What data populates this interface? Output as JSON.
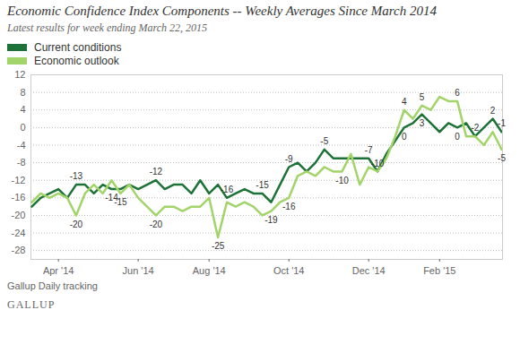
{
  "chart_data": {
    "type": "line",
    "title": "Economic Confidence Index Components -- Weekly Averages Since March 2014",
    "subtitle": "Latest results for week ending March 22, 2015",
    "caption": "Gallup Daily tracking",
    "logo": "GALLUP",
    "legend": "top-left",
    "grid": true,
    "categories": [
      null,
      null,
      null,
      "Apr '14",
      null,
      null,
      null,
      null,
      null,
      null,
      null,
      null,
      "Jun '14",
      null,
      null,
      null,
      null,
      null,
      null,
      null,
      "Aug '14",
      null,
      null,
      null,
      null,
      null,
      null,
      null,
      null,
      "Oct '14",
      null,
      null,
      null,
      null,
      null,
      null,
      null,
      null,
      "Dec '14",
      null,
      null,
      null,
      null,
      null,
      null,
      null,
      "Feb '15",
      null,
      null,
      null,
      null,
      null,
      null,
      null
    ],
    "ylim": [
      -30,
      12
    ],
    "yticks": [
      -28,
      -24,
      -20,
      -16,
      -12,
      -8,
      -4,
      0,
      4,
      8,
      12
    ],
    "series": [
      {
        "name": "Current conditions",
        "color": "#1d7337",
        "values": [
          -18,
          -16,
          -15,
          -14,
          -16,
          -13,
          -13,
          -15,
          -13,
          -14,
          -14,
          -13,
          -14,
          -13,
          -12,
          -14,
          -13,
          -13,
          -15,
          -12,
          -15,
          -13,
          -16,
          -15,
          -14,
          -15,
          -15,
          -17,
          -13,
          -9,
          -8,
          -10,
          -8,
          -5,
          -7,
          -7,
          -7,
          -7,
          -7,
          -10,
          -6,
          -3,
          0,
          1,
          3,
          1,
          -1,
          1,
          0,
          1,
          -2,
          0,
          2,
          -1
        ],
        "value_labels": [
          null,
          null,
          null,
          null,
          null,
          "-13",
          null,
          null,
          null,
          "-14",
          null,
          null,
          null,
          null,
          "-12",
          null,
          null,
          null,
          null,
          null,
          null,
          null,
          "-16",
          null,
          null,
          null,
          "-15",
          null,
          null,
          "-9",
          null,
          null,
          null,
          "-5",
          null,
          null,
          null,
          null,
          "-7",
          "-10",
          null,
          null,
          "0",
          null,
          "3",
          null,
          null,
          null,
          "0",
          null,
          null,
          null,
          "2",
          "-1"
        ]
      },
      {
        "name": "Economic outlook",
        "color": "#a3d46a",
        "values": [
          -17,
          -15,
          -16,
          -15,
          -16,
          -20,
          -15,
          -13,
          -15,
          -12,
          -15,
          -13,
          -16,
          -18,
          -20,
          -18,
          -18,
          -19,
          -18,
          -18,
          -16,
          -25,
          -17,
          -18,
          -17,
          -18,
          -20,
          -19,
          -17,
          -16,
          -11,
          -10,
          -11,
          -9,
          -10,
          -10,
          -6,
          -13,
          -9,
          -10,
          -7,
          -2,
          4,
          2,
          5,
          4,
          7,
          6,
          6,
          -2,
          -2,
          -4,
          -1,
          -5
        ],
        "value_labels": [
          null,
          null,
          null,
          null,
          null,
          "-20",
          null,
          null,
          null,
          null,
          "-15",
          null,
          null,
          null,
          "-20",
          null,
          null,
          null,
          null,
          null,
          null,
          "-25",
          null,
          null,
          null,
          null,
          null,
          "-19",
          null,
          "-16",
          null,
          null,
          null,
          null,
          null,
          "-10",
          null,
          null,
          null,
          null,
          null,
          null,
          "4",
          null,
          "5",
          null,
          null,
          null,
          "6",
          null,
          "-2",
          null,
          null,
          "-5"
        ]
      }
    ]
  }
}
